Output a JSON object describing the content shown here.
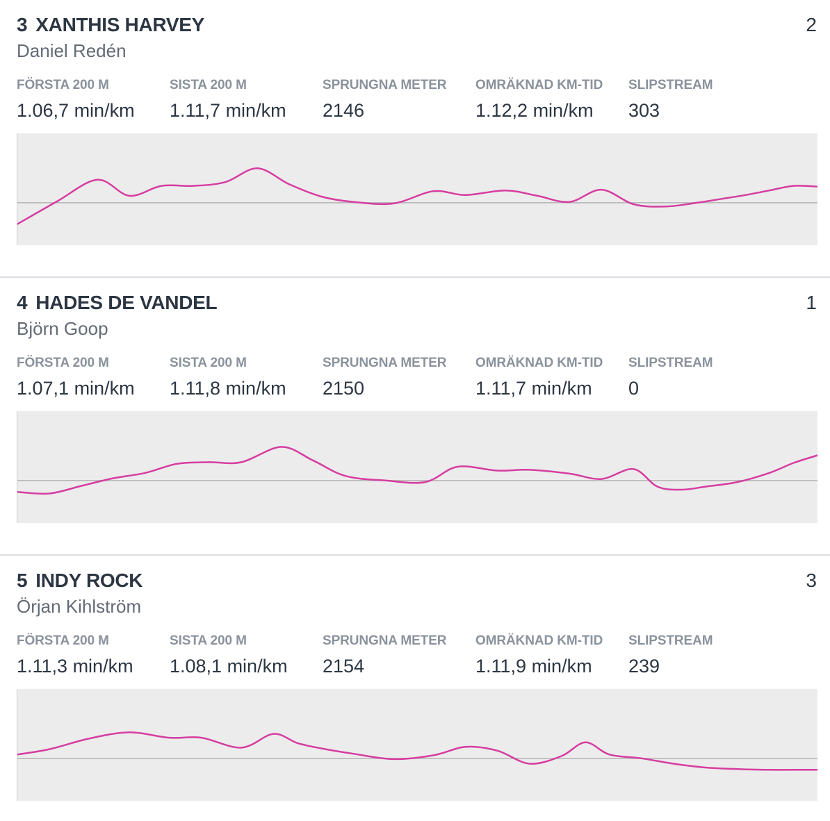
{
  "stat_labels": {
    "first200": "FÖRSTA 200 M",
    "last200": "SISTA 200 M",
    "distance": "SPRUNGNA METER",
    "kmtime": "OMRÄKNAD KM-TID",
    "slipstream": "SLIPSTREAM"
  },
  "colors": {
    "line": "#d63da0",
    "baseline": "#b3b3b3",
    "chart_bg": "#ececec"
  },
  "horses": [
    {
      "number": "3",
      "name": "XANTHIS HARVEY",
      "driver": "Daniel Redén",
      "finish": "2",
      "first200": "1.06,7 min/km",
      "last200": "1.11,7 min/km",
      "distance": "2146",
      "kmtime": "1.12,2 min/km",
      "slipstream": "303",
      "chart_data": {
        "type": "line",
        "baseline": 0,
        "ylim": [
          -1,
          1
        ],
        "x": [
          0,
          0.05,
          0.1,
          0.14,
          0.18,
          0.22,
          0.26,
          0.3,
          0.34,
          0.38,
          0.42,
          0.47,
          0.52,
          0.56,
          0.61,
          0.65,
          0.69,
          0.73,
          0.77,
          0.81,
          0.85,
          0.88,
          0.91,
          0.94,
          0.97,
          1.0
        ],
        "values": [
          -0.28,
          0.02,
          0.3,
          0.09,
          0.22,
          0.22,
          0.27,
          0.45,
          0.24,
          0.08,
          0.01,
          -0.01,
          0.15,
          0.1,
          0.16,
          0.09,
          0.01,
          0.17,
          -0.02,
          -0.05,
          0.0,
          0.05,
          0.1,
          0.16,
          0.22,
          0.21
        ]
      }
    },
    {
      "number": "4",
      "name": "HADES DE VANDEL",
      "driver": "Björn Goop",
      "finish": "1",
      "first200": "1.07,1 min/km",
      "last200": "1.11,8 min/km",
      "distance": "2150",
      "kmtime": "1.11,7 min/km",
      "slipstream": "0",
      "chart_data": {
        "type": "line",
        "baseline": 0,
        "ylim": [
          -1,
          1
        ],
        "x": [
          0,
          0.04,
          0.08,
          0.12,
          0.16,
          0.2,
          0.24,
          0.28,
          0.33,
          0.37,
          0.41,
          0.46,
          0.51,
          0.55,
          0.6,
          0.64,
          0.69,
          0.73,
          0.77,
          0.8,
          0.83,
          0.86,
          0.9,
          0.94,
          0.97,
          1.0
        ],
        "values": [
          -0.15,
          -0.17,
          -0.07,
          0.03,
          0.1,
          0.22,
          0.24,
          0.24,
          0.44,
          0.26,
          0.06,
          0.0,
          -0.02,
          0.18,
          0.13,
          0.14,
          0.09,
          0.02,
          0.15,
          -0.08,
          -0.12,
          -0.08,
          -0.02,
          0.1,
          0.23,
          0.33
        ]
      }
    },
    {
      "number": "5",
      "name": "INDY ROCK",
      "driver": "Örjan Kihlström",
      "finish": "3",
      "first200": "1.11,3 min/km",
      "last200": "1.08,1 min/km",
      "distance": "2154",
      "kmtime": "1.11,9 min/km",
      "slipstream": "239",
      "chart_data": {
        "type": "line",
        "baseline": 0,
        "ylim": [
          -1,
          1
        ],
        "x": [
          0,
          0.04,
          0.09,
          0.14,
          0.19,
          0.23,
          0.28,
          0.32,
          0.35,
          0.38,
          0.42,
          0.47,
          0.52,
          0.56,
          0.6,
          0.64,
          0.68,
          0.71,
          0.74,
          0.78,
          0.82,
          0.86,
          0.9,
          0.94,
          0.97,
          1.0
        ],
        "values": [
          0.05,
          0.12,
          0.26,
          0.34,
          0.27,
          0.27,
          0.14,
          0.32,
          0.2,
          0.13,
          0.06,
          -0.01,
          0.04,
          0.15,
          0.1,
          -0.07,
          0.03,
          0.21,
          0.05,
          0.0,
          -0.07,
          -0.12,
          -0.14,
          -0.15,
          -0.15,
          -0.15
        ]
      }
    }
  ]
}
